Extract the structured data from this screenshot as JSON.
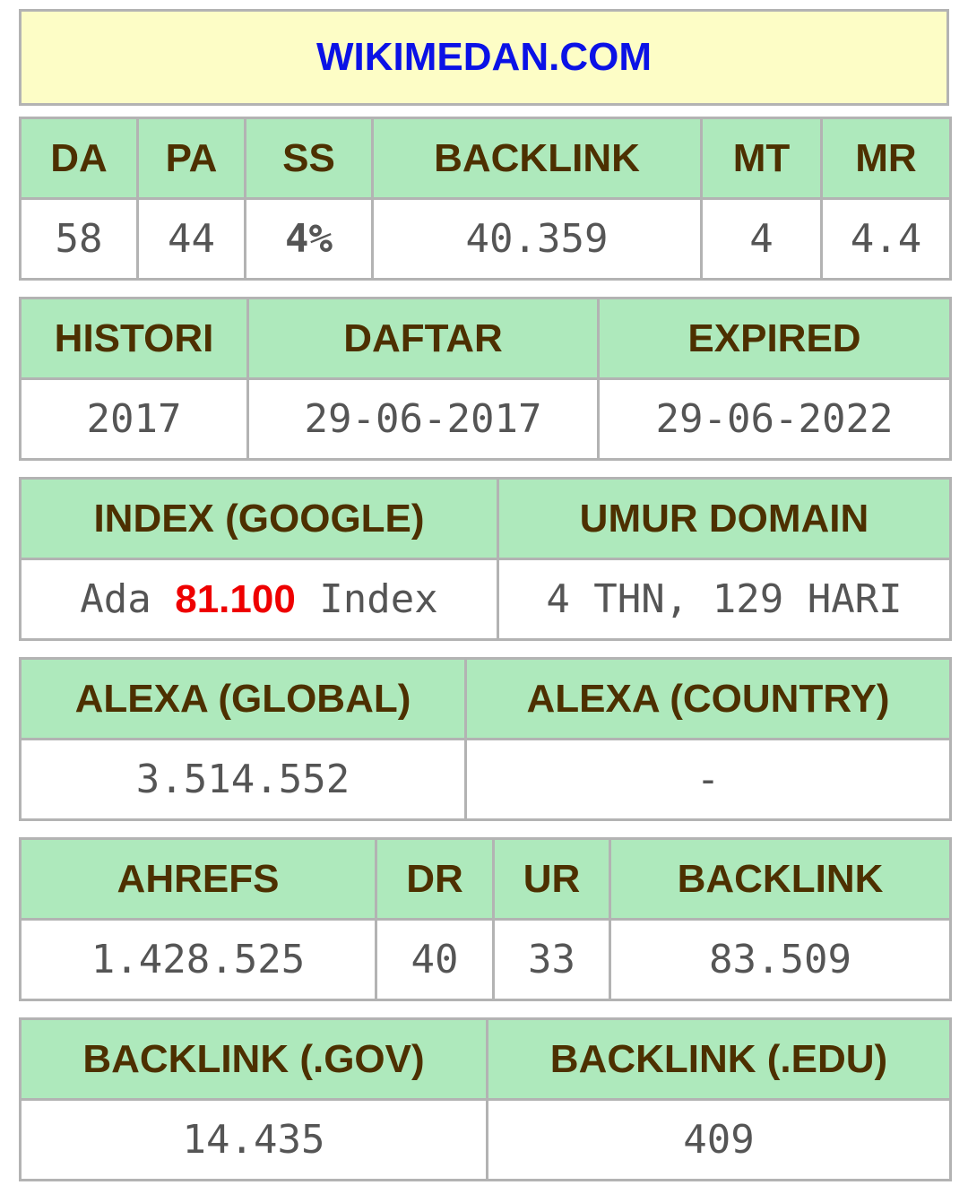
{
  "title": "WIKIMEDAN.COM",
  "moz": {
    "headers": [
      "DA",
      "PA",
      "SS",
      "BACKLINK",
      "MT",
      "MR"
    ],
    "values": [
      "58",
      "44",
      "4%",
      "40.359",
      "4",
      "4.4"
    ]
  },
  "domain": {
    "headers": [
      "HISTORI",
      "DAFTAR",
      "EXPIRED"
    ],
    "values": [
      "2017",
      "29-06-2017",
      "29-06-2022"
    ]
  },
  "index": {
    "headers": [
      "INDEX (GOOGLE)",
      "UMUR DOMAIN"
    ],
    "index_prefix": "Ada",
    "index_count": "81.100",
    "index_suffix": "Index",
    "age": "4 THN, 129 HARI"
  },
  "alexa": {
    "headers": [
      "ALEXA (GLOBAL)",
      "ALEXA (COUNTRY)"
    ],
    "values": [
      "3.514.552",
      "-"
    ]
  },
  "ahrefs": {
    "headers": [
      "AHREFS",
      "DR",
      "UR",
      "BACKLINK"
    ],
    "values": [
      "1.428.525",
      "40",
      "33",
      "83.509"
    ]
  },
  "edu_gov": {
    "headers": [
      "BACKLINK (.GOV)",
      "BACKLINK (.EDU)"
    ],
    "values": [
      "14.435",
      "409"
    ]
  },
  "colors": {
    "title_bg": "#fdfdc6",
    "title_text": "#0b12e6",
    "header_bg": "#aee9bc",
    "header_text": "#4d3000",
    "ss_value": "#0d8a00",
    "index_count": "#ee0000"
  }
}
